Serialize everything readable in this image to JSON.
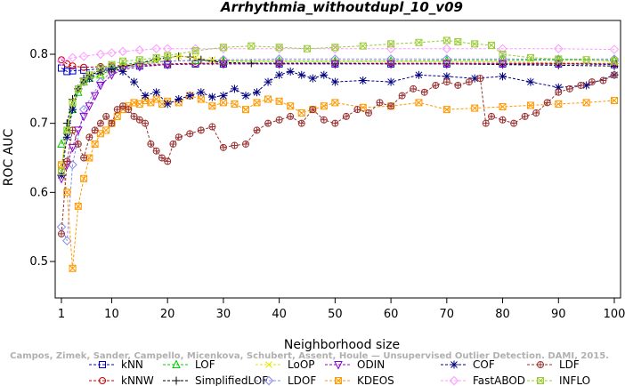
{
  "chart_data": {
    "type": "line",
    "title": "Arrhythmia_withoutdupl_10_v09",
    "xlabel": "Neighborhood size",
    "ylabel": "ROC AUC",
    "xlim": [
      1,
      100
    ],
    "ylim": [
      0.45,
      0.85
    ],
    "x_ticks": [
      1,
      10,
      20,
      30,
      40,
      50,
      60,
      70,
      80,
      90,
      100
    ],
    "y_ticks": [
      0.5,
      0.6,
      0.7,
      0.8
    ],
    "grid": false,
    "legend_position": "bottom",
    "series": [
      {
        "name": "kNN",
        "color": "#0000cc",
        "marker": "square",
        "x": [
          1,
          2,
          3,
          5,
          8,
          10,
          15,
          20,
          25,
          30,
          40,
          50,
          60,
          70,
          80,
          90,
          100
        ],
        "y": [
          0.78,
          0.775,
          0.776,
          0.777,
          0.779,
          0.781,
          0.783,
          0.785,
          0.786,
          0.786,
          0.786,
          0.786,
          0.786,
          0.786,
          0.786,
          0.786,
          0.785
        ]
      },
      {
        "name": "kNNW",
        "color": "#cc0000",
        "marker": "circle",
        "x": [
          1,
          2,
          3,
          5,
          8,
          10,
          15,
          20,
          25,
          30,
          40,
          50,
          60,
          70,
          80,
          90,
          100
        ],
        "y": [
          0.792,
          0.786,
          0.783,
          0.781,
          0.782,
          0.783,
          0.785,
          0.786,
          0.787,
          0.787,
          0.787,
          0.787,
          0.787,
          0.787,
          0.787,
          0.787,
          0.786
        ]
      },
      {
        "name": "LOF",
        "color": "#00cc00",
        "marker": "triangle-up",
        "x": [
          1,
          2,
          3,
          4,
          5,
          6,
          8,
          10,
          12,
          15,
          20,
          25,
          30,
          40,
          50,
          60,
          70,
          80,
          90,
          100
        ],
        "y": [
          0.67,
          0.69,
          0.72,
          0.745,
          0.76,
          0.765,
          0.77,
          0.778,
          0.785,
          0.788,
          0.79,
          0.791,
          0.79,
          0.79,
          0.79,
          0.79,
          0.791,
          0.791,
          0.792,
          0.791
        ]
      },
      {
        "name": "SimplifiedLOF",
        "color": "#000000",
        "marker": "plus",
        "x": [
          1,
          2,
          3,
          4,
          5,
          6,
          8,
          10,
          12,
          15,
          18,
          20,
          22,
          24,
          26,
          28,
          30,
          35,
          40,
          50,
          60,
          70,
          80,
          90,
          100
        ],
        "y": [
          0.625,
          0.7,
          0.735,
          0.75,
          0.765,
          0.77,
          0.775,
          0.778,
          0.782,
          0.787,
          0.793,
          0.795,
          0.797,
          0.796,
          0.792,
          0.79,
          0.788,
          0.787,
          0.787,
          0.787,
          0.786,
          0.786,
          0.785,
          0.784,
          0.783
        ]
      },
      {
        "name": "LoOP",
        "color": "#e6e600",
        "marker": "x",
        "x": [
          1,
          2,
          3,
          5,
          8,
          10,
          12,
          15,
          18,
          20,
          22,
          25,
          28,
          30,
          40,
          50,
          60,
          70,
          80,
          90,
          100
        ],
        "y": [
          0.64,
          0.69,
          0.73,
          0.76,
          0.77,
          0.775,
          0.78,
          0.785,
          0.79,
          0.795,
          0.797,
          0.795,
          0.792,
          0.791,
          0.79,
          0.79,
          0.79,
          0.789,
          0.789,
          0.788,
          0.788
        ]
      },
      {
        "name": "LDOF",
        "color": "#8888ee",
        "marker": "diamond",
        "x": [
          1,
          2,
          3,
          5,
          8,
          10,
          15,
          20,
          30,
          40,
          50,
          60,
          70,
          80,
          90,
          100
        ],
        "y": [
          0.55,
          0.53,
          0.64,
          0.72,
          0.76,
          0.775,
          0.785,
          0.79,
          0.792,
          0.793,
          0.793,
          0.793,
          0.793,
          0.793,
          0.793,
          0.793
        ]
      },
      {
        "name": "ODIN",
        "color": "#8800cc",
        "marker": "triangle-down",
        "x": [
          1,
          2,
          3,
          4,
          5,
          6,
          7,
          8,
          10,
          12,
          15,
          20,
          30,
          40,
          50,
          60,
          70,
          80,
          90,
          100
        ],
        "y": [
          0.62,
          0.64,
          0.665,
          0.69,
          0.71,
          0.725,
          0.74,
          0.755,
          0.77,
          0.778,
          0.782,
          0.785,
          0.786,
          0.786,
          0.786,
          0.786,
          0.786,
          0.786,
          0.786,
          0.786
        ]
      },
      {
        "name": "KDEOS",
        "color": "#ff9900",
        "marker": "square-x",
        "x": [
          1,
          2,
          3,
          4,
          5,
          6,
          7,
          8,
          9,
          10,
          11,
          12,
          13,
          14,
          15,
          16,
          17,
          18,
          19,
          20,
          22,
          24,
          26,
          28,
          30,
          32,
          34,
          36,
          38,
          40,
          42,
          44,
          46,
          48,
          50,
          55,
          60,
          65,
          70,
          75,
          80,
          85,
          90,
          95,
          100
        ],
        "y": [
          0.64,
          0.6,
          0.49,
          0.58,
          0.62,
          0.65,
          0.67,
          0.685,
          0.69,
          0.7,
          0.71,
          0.72,
          0.725,
          0.73,
          0.728,
          0.733,
          0.73,
          0.735,
          0.728,
          0.732,
          0.73,
          0.74,
          0.735,
          0.725,
          0.73,
          0.728,
          0.72,
          0.73,
          0.735,
          0.732,
          0.725,
          0.715,
          0.72,
          0.725,
          0.73,
          0.723,
          0.725,
          0.73,
          0.72,
          0.722,
          0.724,
          0.726,
          0.728,
          0.73,
          0.733
        ]
      },
      {
        "name": "COF",
        "color": "#000080",
        "marker": "asterisk",
        "x": [
          1,
          2,
          3,
          4,
          5,
          6,
          8,
          10,
          12,
          14,
          16,
          18,
          20,
          22,
          24,
          26,
          28,
          30,
          32,
          34,
          36,
          38,
          40,
          42,
          44,
          46,
          48,
          50,
          55,
          60,
          65,
          70,
          75,
          80,
          85,
          90,
          95,
          100
        ],
        "y": [
          0.625,
          0.68,
          0.72,
          0.75,
          0.76,
          0.765,
          0.775,
          0.78,
          0.775,
          0.76,
          0.74,
          0.745,
          0.728,
          0.735,
          0.74,
          0.745,
          0.738,
          0.74,
          0.75,
          0.74,
          0.745,
          0.76,
          0.77,
          0.775,
          0.77,
          0.765,
          0.77,
          0.76,
          0.762,
          0.76,
          0.77,
          0.768,
          0.765,
          0.768,
          0.76,
          0.752,
          0.755,
          0.77
        ]
      },
      {
        "name": "FastABOD",
        "color": "#ff99ff",
        "marker": "diamond",
        "x": [
          1,
          3,
          5,
          8,
          10,
          12,
          15,
          18,
          20,
          25,
          30,
          40,
          50,
          60,
          70,
          80,
          90,
          100
        ],
        "y": [
          0.79,
          0.795,
          0.797,
          0.8,
          0.802,
          0.804,
          0.806,
          0.808,
          0.808,
          0.808,
          0.808,
          0.808,
          0.808,
          0.808,
          0.808,
          0.808,
          0.808,
          0.807
        ]
      },
      {
        "name": "LDF",
        "color": "#993333",
        "marker": "circle-plus",
        "x": [
          1,
          2,
          3,
          4,
          5,
          6,
          7,
          8,
          9,
          10,
          11,
          12,
          13,
          14,
          15,
          16,
          17,
          18,
          19,
          20,
          21,
          22,
          24,
          26,
          28,
          30,
          32,
          34,
          36,
          38,
          40,
          42,
          44,
          46,
          48,
          50,
          52,
          54,
          56,
          58,
          60,
          62,
          64,
          66,
          68,
          70,
          72,
          74,
          76,
          77,
          78,
          80,
          82,
          84,
          86,
          88,
          90,
          92,
          94,
          96,
          98,
          100
        ],
        "y": [
          0.54,
          0.645,
          0.69,
          0.67,
          0.65,
          0.68,
          0.69,
          0.7,
          0.71,
          0.7,
          0.72,
          0.725,
          0.72,
          0.71,
          0.705,
          0.7,
          0.67,
          0.66,
          0.65,
          0.645,
          0.67,
          0.68,
          0.685,
          0.69,
          0.695,
          0.665,
          0.668,
          0.67,
          0.69,
          0.7,
          0.705,
          0.71,
          0.7,
          0.72,
          0.705,
          0.7,
          0.71,
          0.72,
          0.715,
          0.73,
          0.725,
          0.74,
          0.75,
          0.745,
          0.755,
          0.76,
          0.755,
          0.76,
          0.765,
          0.7,
          0.71,
          0.705,
          0.7,
          0.71,
          0.715,
          0.73,
          0.745,
          0.75,
          0.755,
          0.76,
          0.762,
          0.77
        ]
      },
      {
        "name": "INFLO",
        "color": "#99cc33",
        "marker": "square-x",
        "x": [
          1,
          2,
          3,
          4,
          5,
          6,
          8,
          10,
          12,
          15,
          18,
          20,
          25,
          30,
          35,
          40,
          45,
          50,
          55,
          60,
          65,
          70,
          72,
          75,
          78,
          80,
          85,
          90,
          95,
          100
        ],
        "y": [
          0.63,
          0.69,
          0.73,
          0.75,
          0.76,
          0.77,
          0.78,
          0.785,
          0.79,
          0.792,
          0.795,
          0.798,
          0.805,
          0.81,
          0.812,
          0.81,
          0.808,
          0.81,
          0.812,
          0.815,
          0.817,
          0.82,
          0.818,
          0.815,
          0.813,
          0.8,
          0.795,
          0.793,
          0.792,
          0.79
        ]
      }
    ]
  },
  "watermark": "Campos, Zimek, Sander, Campello, Micenkova, Schubert, Assent, Houle — Unsupervised Outlier Detection. DAMI, 2015."
}
